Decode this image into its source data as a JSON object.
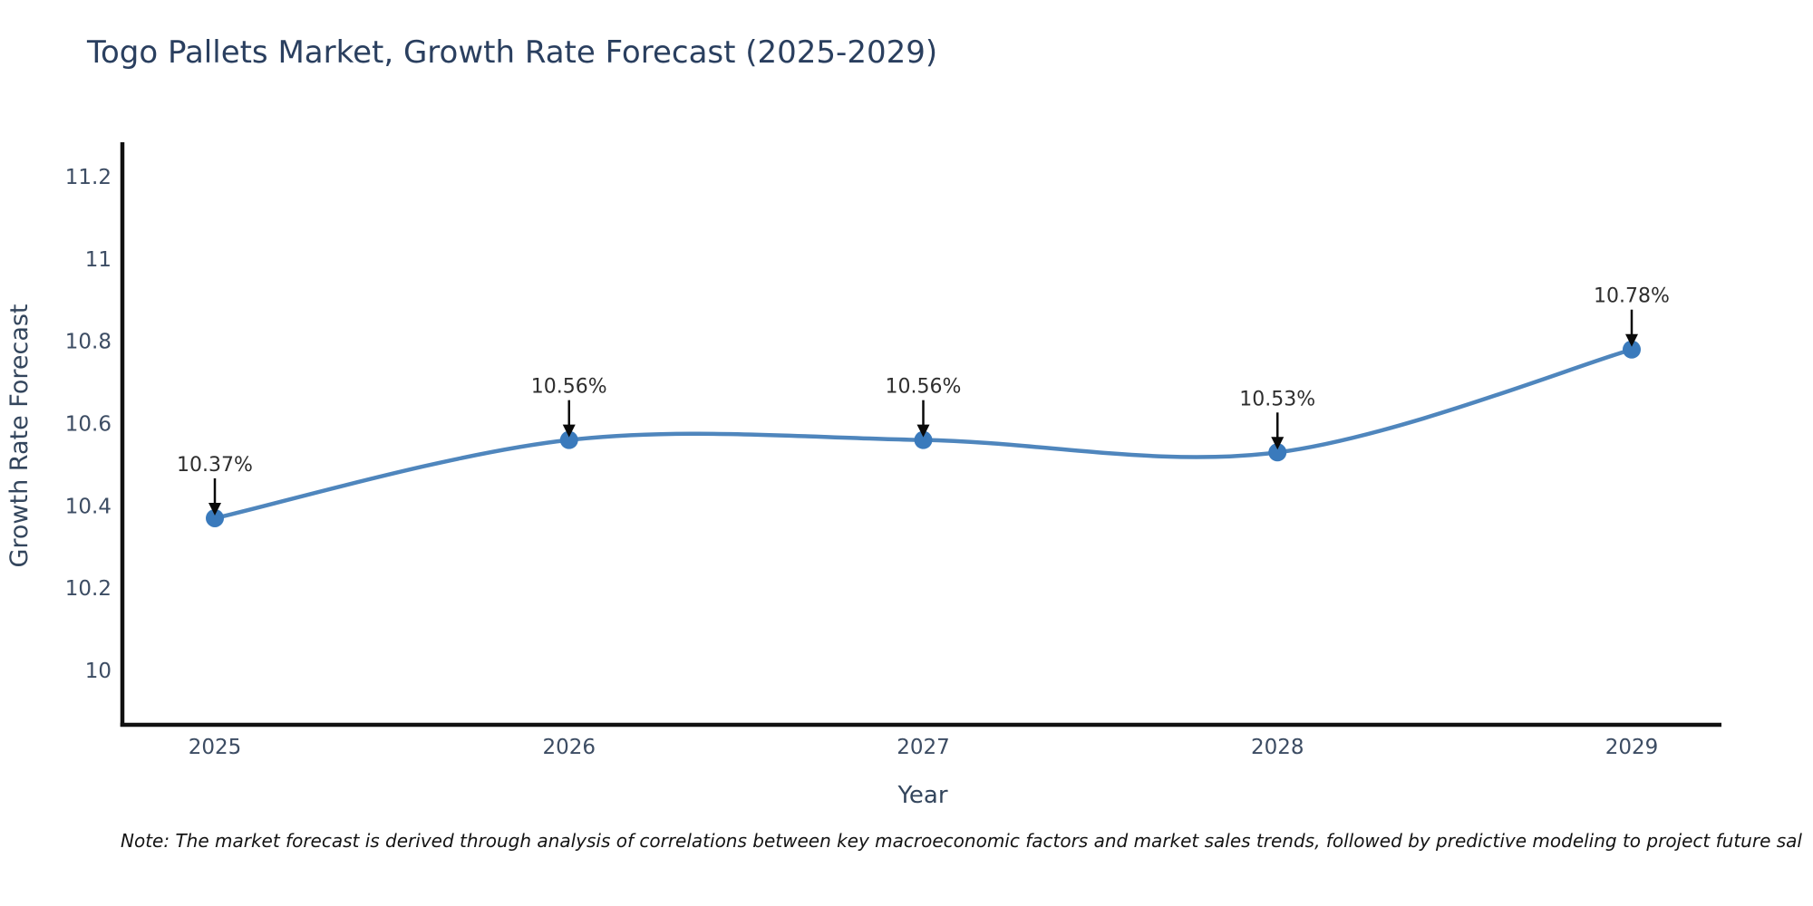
{
  "title": "Togo Pallets Market, Growth Rate Forecast (2025-2029)",
  "note": "Note: The market forecast is derived through analysis of correlations between key macroeconomic factors and market sales trends, followed by predictive modeling to project future sal",
  "chart_data": {
    "type": "line",
    "title": "Togo Pallets Market, Growth Rate Forecast (2025-2029)",
    "xlabel": "Year",
    "ylabel": "Growth Rate Forecast",
    "categories": [
      "2025",
      "2026",
      "2027",
      "2028",
      "2029"
    ],
    "series": [
      {
        "name": "Growth Rate Forecast",
        "values": [
          10.37,
          10.56,
          10.56,
          10.53,
          10.78
        ]
      }
    ],
    "point_labels": [
      "10.37%",
      "10.56%",
      "10.56%",
      "10.53%",
      "10.78%"
    ],
    "y_ticks": [
      10,
      10.2,
      10.4,
      10.6,
      10.8,
      11,
      11.2
    ],
    "y_tick_labels": [
      "10",
      "10.2",
      "10.4",
      "10.6",
      "10.8",
      "11",
      "11.2"
    ],
    "ylim": [
      9.87,
      11.28
    ],
    "grid": false,
    "legend_position": "none",
    "line_style": "spline",
    "annotation_arrows": true,
    "colors": {
      "line": "#4f86bd",
      "marker": "#3a7abc",
      "axis": "#111111",
      "title_text": "#2a3f5f",
      "tick_text": "#3c4c63",
      "annotation_text": "#2e2e2e",
      "arrow": "#0a0a0a",
      "background": "#ffffff"
    }
  }
}
